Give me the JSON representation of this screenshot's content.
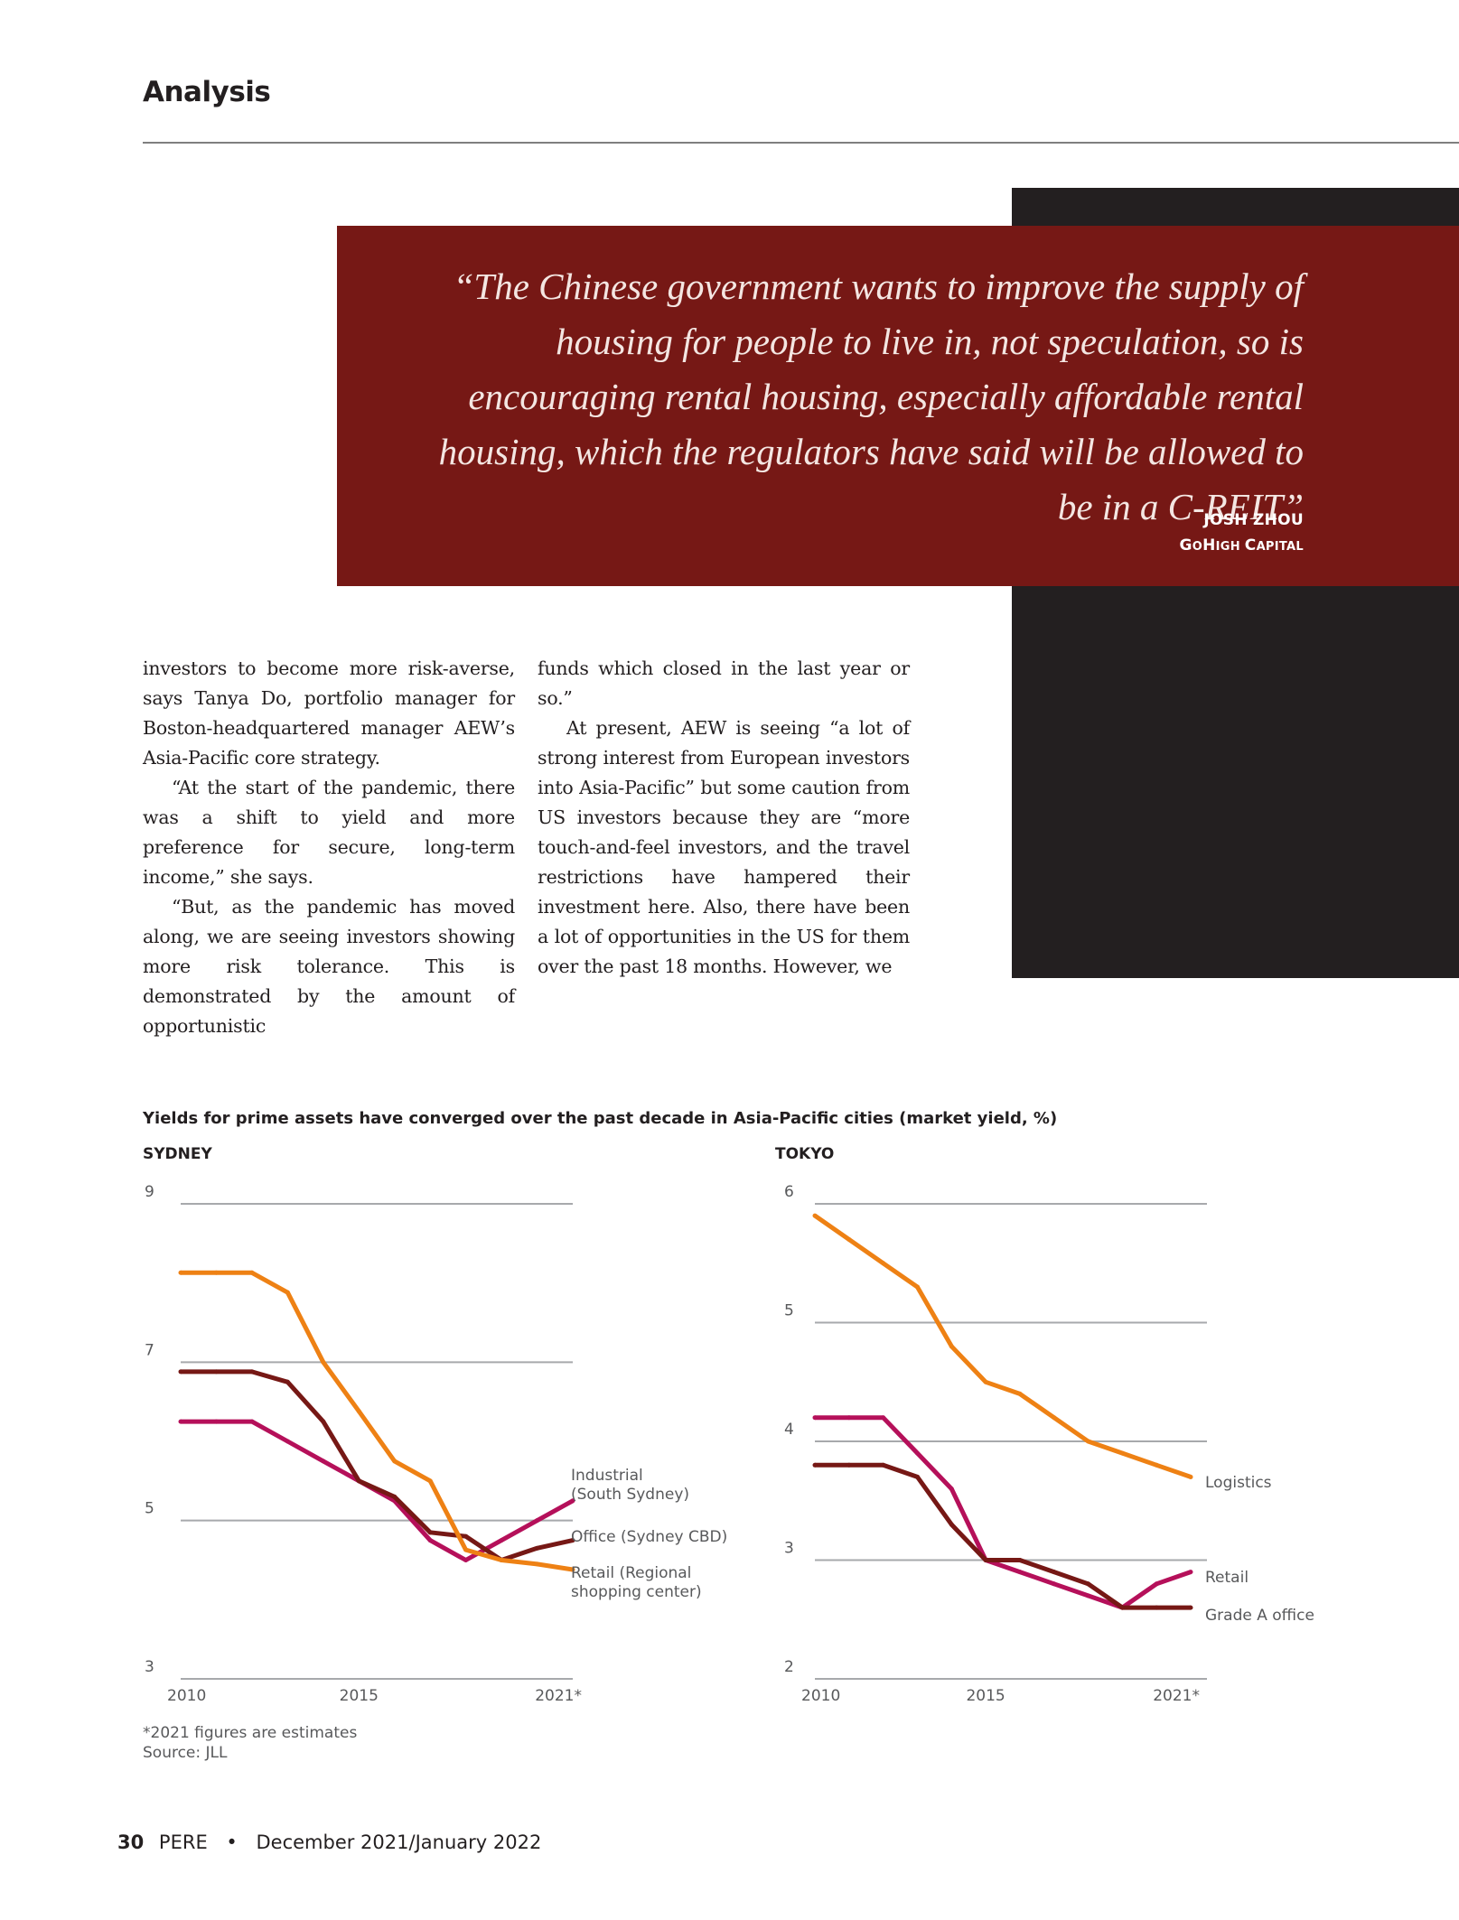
{
  "section": "Analysis",
  "pull_quote": {
    "text": "“The Chinese government wants to improve the supply of housing for people to live in, not speculation, so is encouraging rental housing, especially affordable rental housing, which the regulators have said will be allowed to be in a C-REIT”",
    "name": "JOSH ZHOU",
    "organization": "GoHigh Capital"
  },
  "body": {
    "left_paragraphs": [
      "investors to become more risk-averse, says Tanya Do, portfolio manager for Boston-headquartered manager AEW’s Asia-Pacific core strategy.",
      "“At the start of the pandemic, there was a shift to yield and more preference for secure, long-term income,” she says.",
      "“But, as the pandemic has moved along, we are seeing investors showing more risk tolerance. This is demonstrated by the amount of opportunistic"
    ],
    "right_paragraphs": [
      "funds which closed in the last year or so.”",
      "At present, AEW is seeing “a lot of strong interest from European investors into Asia-Pacific” but some caution from US investors because they are “more touch-and-feel investors, and the travel restrictions have hampered their investment here. Also, there have been a lot of opportunities in the US for them over the past 18 months. However, we"
    ]
  },
  "figure": {
    "title": "Yields for prime assets have converged over the past decade in Asia-Pacific cities (market yield, %)",
    "footnote": "*2021 figures are estimates",
    "source": "Source: JLL"
  },
  "colors": {
    "quote_background": "#761815",
    "dark_block": "#231f20",
    "orange": "#ee8114",
    "magenta": "#b5105a",
    "brown": "#761815",
    "black": "#231f20"
  },
  "chart_data": [
    {
      "type": "line",
      "title": "SYDNEY",
      "x": [
        2010,
        2011,
        2012,
        2013,
        2014,
        2015,
        2016,
        2017,
        2018,
        2019,
        2020,
        2021
      ],
      "xticks": [
        2010,
        2015,
        2021
      ],
      "xtick_labels": [
        "2010",
        "2015",
        "2021*"
      ],
      "ylim": [
        3,
        9
      ],
      "yticks": [
        3,
        5,
        7,
        9
      ],
      "grid": true,
      "series": [
        {
          "name": "Industrial (South Sydney)",
          "color": "#b5105a",
          "values": [
            6.25,
            6.25,
            6.25,
            6.0,
            5.75,
            5.5,
            5.25,
            4.75,
            4.5,
            4.75,
            5.0,
            5.25
          ]
        },
        {
          "name": "Office (Sydney CBD)",
          "color": "#761815",
          "values": [
            6.88,
            6.88,
            6.88,
            6.75,
            6.25,
            5.5,
            5.3,
            4.85,
            4.8,
            4.5,
            4.65,
            4.75
          ]
        },
        {
          "name": "Retail (Regional shopping center)",
          "color": "#ee8114",
          "values": [
            8.13,
            8.13,
            8.13,
            7.88,
            7.0,
            6.38,
            5.75,
            5.5,
            4.63,
            4.5,
            4.45,
            4.38
          ]
        }
      ]
    },
    {
      "type": "line",
      "title": "TOKYO",
      "x": [
        2010,
        2011,
        2012,
        2013,
        2014,
        2015,
        2016,
        2017,
        2018,
        2019,
        2020,
        2021
      ],
      "xticks": [
        2010,
        2015,
        2021
      ],
      "xtick_labels": [
        "2010",
        "2015",
        "2021*"
      ],
      "ylim": [
        2,
        6
      ],
      "yticks": [
        2,
        3,
        4,
        5,
        6
      ],
      "grid": true,
      "series": [
        {
          "name": "Logistics",
          "color": "#ee8114",
          "values": [
            5.9,
            5.7,
            5.5,
            5.3,
            4.8,
            4.5,
            4.4,
            4.2,
            4.0,
            3.9,
            3.8,
            3.7
          ]
        },
        {
          "name": "Retail",
          "color": "#b5105a",
          "values": [
            4.2,
            4.2,
            4.2,
            3.9,
            3.6,
            3.0,
            2.9,
            2.8,
            2.7,
            2.6,
            2.8,
            2.9
          ]
        },
        {
          "name": "Grade A office",
          "color": "#761815",
          "values": [
            3.8,
            3.8,
            3.8,
            3.7,
            3.3,
            3.0,
            3.0,
            2.9,
            2.8,
            2.6,
            2.6,
            2.6
          ]
        }
      ]
    }
  ],
  "footer": {
    "page": "30",
    "publication": "PERE",
    "issue": "December 2021/January 2022"
  }
}
